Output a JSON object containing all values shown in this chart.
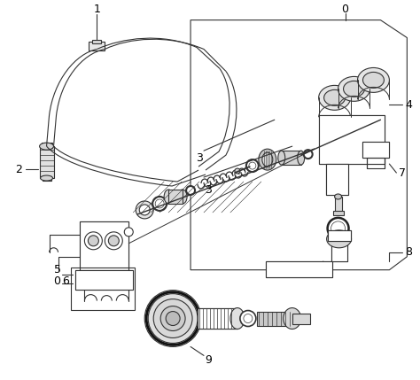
{
  "bg_color": "#ffffff",
  "line_color": "#333333",
  "label_color": "#000000",
  "label_fontsize": 8,
  "fig_width": 4.74,
  "fig_height": 4.29,
  "dpi": 100
}
